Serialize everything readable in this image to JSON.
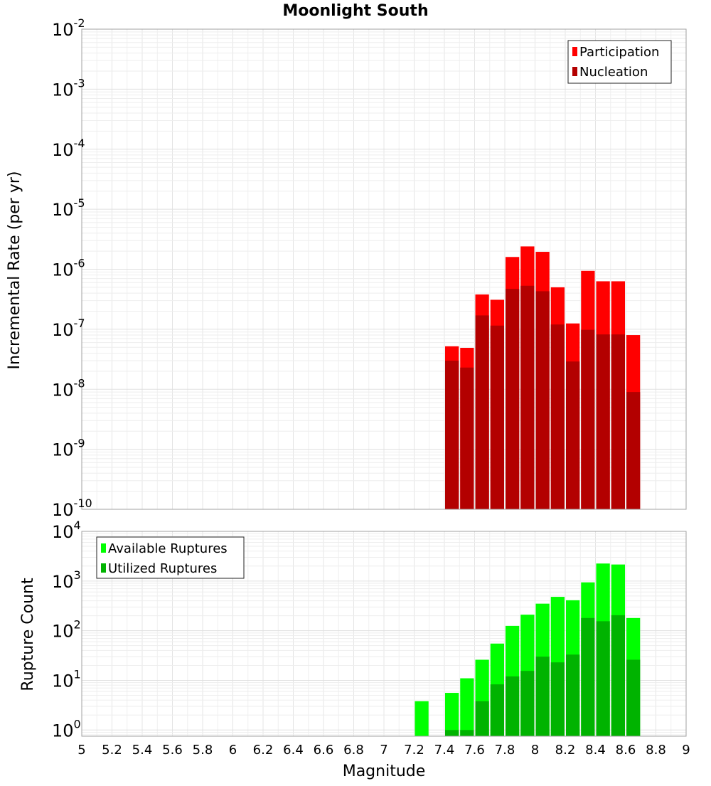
{
  "chart_data": [
    {
      "type": "bar",
      "title": "Moonlight South",
      "ylabel": "Incremental Rate (per yr)",
      "xlabel": "",
      "yscale": "log",
      "ylim": [
        1e-10,
        0.01
      ],
      "xlim": [
        5,
        9
      ],
      "legend_position": "top-right",
      "grid": true,
      "y_ticks": [
        {
          "base": "10",
          "exp": "-2"
        },
        {
          "base": "10",
          "exp": "-3"
        },
        {
          "base": "10",
          "exp": "-4"
        },
        {
          "base": "10",
          "exp": "-5"
        },
        {
          "base": "10",
          "exp": "-6"
        },
        {
          "base": "10",
          "exp": "-7"
        },
        {
          "base": "10",
          "exp": "-8"
        },
        {
          "base": "10",
          "exp": "-9"
        },
        {
          "base": "10",
          "exp": "-10"
        }
      ],
      "x": [
        7.45,
        7.55,
        7.65,
        7.75,
        7.85,
        7.95,
        8.05,
        8.15,
        8.25,
        8.35,
        8.45,
        8.55,
        8.65
      ],
      "series": [
        {
          "name": "Participation",
          "color": "#ff0000",
          "values": [
            5.2e-08,
            4.9e-08,
            3.8e-07,
            3.1e-07,
            1.6e-06,
            2.4e-06,
            1.95e-06,
            5e-07,
            1.25e-07,
            9.4e-07,
            6.3e-07,
            6.3e-07,
            8e-08
          ]
        },
        {
          "name": "Nucleation",
          "color": "#b30000",
          "values": [
            3e-08,
            2.3e-08,
            1.7e-07,
            1.15e-07,
            4.7e-07,
            5.3e-07,
            4.3e-07,
            1.2e-07,
            2.9e-08,
            9.8e-08,
            8.2e-08,
            8.2e-08,
            9e-09
          ]
        }
      ]
    },
    {
      "type": "bar",
      "title": "",
      "ylabel": "Rupture Count",
      "xlabel": "Magnitude",
      "yscale": "log",
      "ylim": [
        0.75,
        10000
      ],
      "xlim": [
        5,
        9
      ],
      "legend_position": "top-left",
      "grid": true,
      "y_ticks": [
        {
          "value": 10000,
          "base": "10",
          "exp": "4"
        },
        {
          "value": 1000,
          "base": "10",
          "exp": "3"
        },
        {
          "value": 100,
          "base": "10",
          "exp": "2"
        },
        {
          "value": 10,
          "base": "10",
          "exp": "1"
        },
        {
          "value": 1,
          "base": "10",
          "exp": "0"
        }
      ],
      "x_ticks": [
        "5",
        "5.2",
        "5.4",
        "5.6",
        "5.8",
        "6",
        "6.2",
        "6.4",
        "6.6",
        "6.8",
        "7",
        "7.2",
        "7.4",
        "7.6",
        "7.8",
        "8",
        "8.2",
        "8.4",
        "8.6",
        "8.8",
        "9"
      ],
      "x": [
        7.25,
        7.45,
        7.55,
        7.65,
        7.75,
        7.85,
        7.95,
        8.05,
        8.15,
        8.25,
        8.35,
        8.45,
        8.55,
        8.65
      ],
      "series": [
        {
          "name": "Available Ruptures",
          "color": "#00ff00",
          "values": [
            3.8,
            5.6,
            11,
            26,
            55,
            125,
            210,
            350,
            480,
            410,
            940,
            2250,
            2150,
            180
          ]
        },
        {
          "name": "Utilized Ruptures",
          "color": "#00b300",
          "values": [
            null,
            1.0,
            1.0,
            3.8,
            8.3,
            12,
            15.5,
            30,
            23,
            33,
            180,
            155,
            205,
            26
          ]
        }
      ]
    }
  ]
}
